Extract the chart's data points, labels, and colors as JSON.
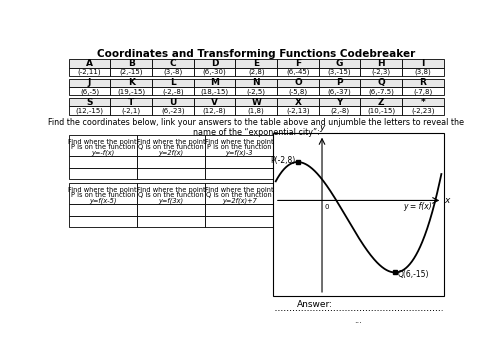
{
  "title": "Coordinates and Transforming Functions Codebreaker",
  "table1": {
    "letters": [
      "A",
      "B",
      "C",
      "D",
      "E",
      "F",
      "G",
      "H",
      "I"
    ],
    "coords": [
      "(-2,11)",
      "(2,-15)",
      "(3,-8)",
      "(6,-30)",
      "(2,8)",
      "(6,-45)",
      "(3,-15)",
      "(-2,3)",
      "(3,8)"
    ]
  },
  "table2": {
    "letters": [
      "J",
      "K",
      "L",
      "M",
      "N",
      "O",
      "P",
      "Q",
      "R"
    ],
    "coords": [
      "(6,-5)",
      "(19,-15)",
      "(-2,-8)",
      "(18,-15)",
      "(-2,5)",
      "(-5,8)",
      "(6,-37)",
      "(6,-7.5)",
      "(-7,8)"
    ]
  },
  "table3": {
    "letters": [
      "S",
      "T",
      "U",
      "V",
      "W",
      "X",
      "Y",
      "Z",
      "*"
    ],
    "coords": [
      "(12,-15)",
      "(-2,1)",
      "(6,-23)",
      "(12,-8)",
      "(1,8)",
      "(-2,13)",
      "(2,-8)",
      "(10,-15)",
      "(-2,23)"
    ]
  },
  "instruction": "Find the coordinates below, link your answers to the table above and unjumble the letters to reveal the\nname of the “exponential city”:",
  "box_tasks": [
    {
      "header": "Find where the point\nP is on the function",
      "formula": "y=-f(x)"
    },
    {
      "header": "Find where the point\nQ is on the function",
      "formula": "y=2f(x)"
    },
    {
      "header": "Find where the point\nP is on the function",
      "formula": "y=f(x)-3"
    },
    {
      "header": "Find where the point\nP is on the function",
      "formula": "y=f(x-5)"
    },
    {
      "header": "Find where the point\nQ is on the function",
      "formula": "y=f(3x)"
    },
    {
      "header": "Find where the point\nQ is on the function",
      "formula": "y=2f(x)+7"
    }
  ],
  "answer_label": "Answer:",
  "bg_color": "#ffffff"
}
